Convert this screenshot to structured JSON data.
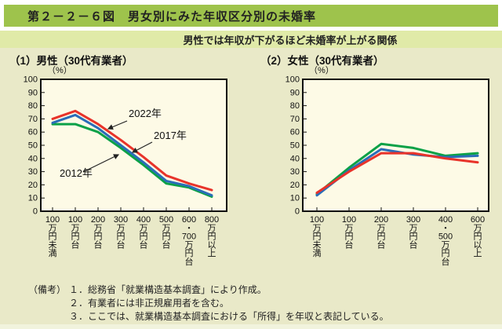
{
  "header": {
    "title": "第２－２－６図　男女別にみた年収区分別の未婚率",
    "subtitle": "男性では年収が下がるほど未婚率が上がる関係"
  },
  "colors": {
    "title_bar": "#9ec34c",
    "subtitle_band": "#e0eaa8",
    "page_bg": "#e9e9c8",
    "plot_bg": "#fdfae6",
    "series_2022": "#e8332a",
    "series_2017": "#2a6db8",
    "series_2012": "#0aa147"
  },
  "notes": {
    "label": "（備考）",
    "items": [
      "１．総務省「就業構造基本調査」により作成。",
      "２．有業者には非正規雇用者を含む。",
      "３．ここでは、就業構造基本調査における「所得」を年収と表記している。"
    ]
  },
  "chart_data": [
    {
      "type": "line",
      "title": "（1）男性（30代有業者）",
      "unit": "（%）",
      "xlabel": "",
      "ylabel": "",
      "ylim": [
        0,
        100
      ],
      "ytick_step": 10,
      "grid": false,
      "legend_position": "inline-annotations",
      "categories": [
        "100万円未満",
        "100万円台",
        "200万円台",
        "300万円台",
        "400万円台",
        "500万円台",
        "600・700万円台",
        "800万円以上"
      ],
      "series": [
        {
          "name": "2012年",
          "color": "#0aa147",
          "values": [
            66,
            66,
            60,
            48,
            35,
            21,
            18,
            11
          ]
        },
        {
          "name": "2017年",
          "color": "#2a6db8",
          "values": [
            67,
            73,
            63,
            50,
            37,
            23,
            19,
            12
          ]
        },
        {
          "name": "2022年",
          "color": "#e8332a",
          "values": [
            70,
            76,
            66,
            54,
            41,
            27,
            21,
            16
          ]
        }
      ],
      "annotations": [
        {
          "text": "2022年",
          "text_xy": [
            112,
            48
          ],
          "line": [
            110,
            53,
            86,
            63
          ]
        },
        {
          "text": "2017年",
          "text_xy": [
            144,
            76
          ],
          "line": [
            142,
            80,
            117,
            93
          ]
        },
        {
          "text": "2012年",
          "text_xy": [
            24,
            124
          ],
          "line": [
            54,
            118,
            99,
            96
          ]
        }
      ]
    },
    {
      "type": "line",
      "title": "（2）女性（30代有業者）",
      "unit": "（%）",
      "xlabel": "",
      "ylabel": "",
      "ylim": [
        0,
        100
      ],
      "ytick_step": 10,
      "grid": false,
      "legend_position": "none",
      "categories": [
        "100万円未満",
        "100万円台",
        "200万円台",
        "300万円台",
        "400・500万円台",
        "600万円以上"
      ],
      "series": [
        {
          "name": "2012年",
          "color": "#0aa147",
          "values": [
            13,
            33,
            51,
            48,
            42,
            44
          ]
        },
        {
          "name": "2017年",
          "color": "#2a6db8",
          "values": [
            12,
            31,
            47,
            43,
            41,
            42
          ]
        },
        {
          "name": "2022年",
          "color": "#e8332a",
          "values": [
            14,
            30,
            44,
            44,
            40,
            37
          ]
        }
      ],
      "annotations": []
    }
  ]
}
